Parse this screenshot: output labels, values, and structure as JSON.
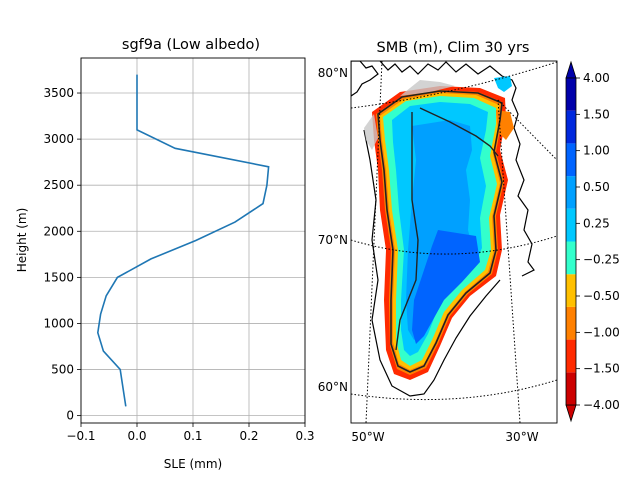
{
  "chart_data": [
    {
      "type": "line",
      "title": "sgf9a (Low albedo)",
      "xlabel": "SLE (mm)",
      "ylabel": "Height (m)",
      "xlim": [
        -0.1,
        0.3
      ],
      "ylim": [
        -80,
        3880
      ],
      "xticks": [
        -0.1,
        0.0,
        0.1,
        0.2,
        0.3
      ],
      "xtick_labels": [
        "−0.1",
        "0.0",
        "0.1",
        "0.2",
        "0.3"
      ],
      "yticks": [
        0,
        500,
        1000,
        1500,
        2000,
        2500,
        3000,
        3500
      ],
      "ytick_labels": [
        "0",
        "500",
        "1000",
        "1500",
        "2000",
        "2500",
        "3000",
        "3500"
      ],
      "grid": true,
      "color": "#1f77b4",
      "series": [
        {
          "x": [
            -0.02,
            -0.025,
            -0.03,
            -0.06,
            -0.07,
            -0.065,
            -0.055,
            -0.035,
            0.025,
            0.105,
            0.175,
            0.225,
            0.232,
            0.235,
            0.068,
            0.0,
            0.0,
            0.0
          ],
          "y": [
            100,
            300,
            500,
            700,
            900,
            1100,
            1300,
            1500,
            1700,
            1900,
            2100,
            2300,
            2500,
            2700,
            2900,
            3100,
            3300,
            3700
          ]
        }
      ]
    },
    {
      "type": "heatmap",
      "title": "SMB (m), Clim 30 yrs",
      "lat_labels": [
        "80°N",
        "70°N",
        "60°N"
      ],
      "lon_labels": [
        "50°W",
        "30°W"
      ],
      "colorbar": {
        "ticks": [
          "−4.00",
          "−1.50",
          "−1.00",
          "−0.50",
          "−0.25",
          "0.25",
          "0.50",
          "1.00",
          "1.50",
          "4.00"
        ],
        "colors": [
          "#cc0000",
          "#ff2a00",
          "#ff8000",
          "#ffc000",
          "#33ffcc",
          "#00c8ff",
          "#00a0ff",
          "#0064ff",
          "#0028dd",
          "#0000aa"
        ],
        "extend": "both"
      }
    }
  ]
}
